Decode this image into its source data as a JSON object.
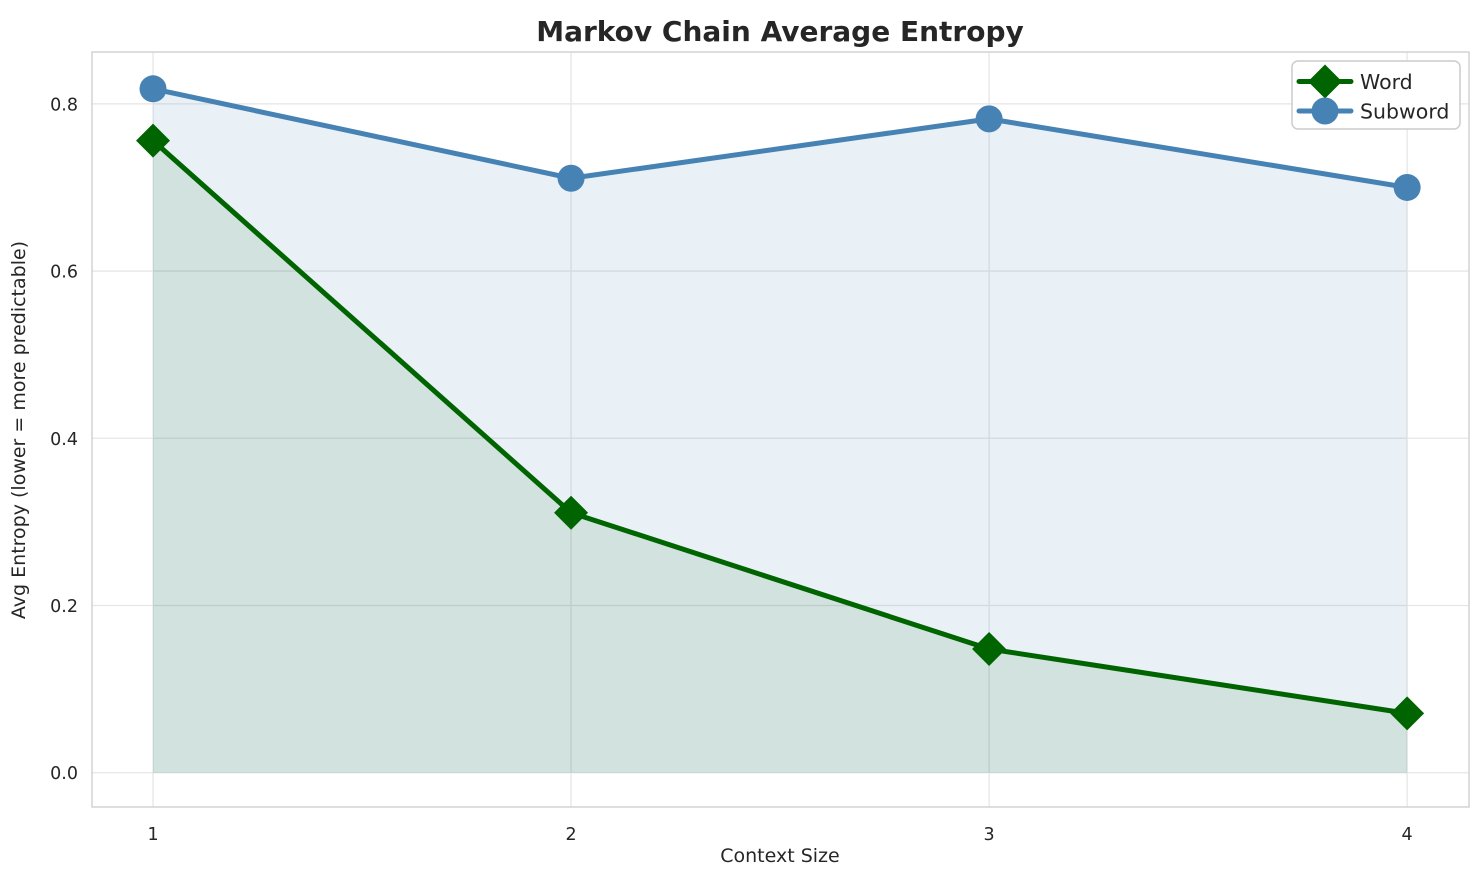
{
  "chart_data": {
    "type": "line",
    "title": "Markov Chain Average Entropy",
    "xlabel": "Context Size",
    "ylabel": "Avg Entropy (lower = more predictable)",
    "x": [
      1,
      2,
      3,
      4
    ],
    "series": [
      {
        "name": "Word",
        "values": [
          0.756,
          0.311,
          0.148,
          0.071
        ],
        "color": "#006400",
        "marker": "diamond",
        "fill_to_zero": true,
        "fill_opacity": 0.1
      },
      {
        "name": "Subword",
        "values": [
          0.818,
          0.711,
          0.782,
          0.7
        ],
        "color": "#4682b4",
        "marker": "circle",
        "fill_to_zero": true,
        "fill_opacity": 0.12
      }
    ],
    "xticks": [
      1,
      2,
      3,
      4
    ],
    "yticks": [
      0.0,
      0.2,
      0.4,
      0.6,
      0.8
    ],
    "xlim": [
      0.854,
      4.148
    ],
    "ylim": [
      -0.041,
      0.862
    ],
    "grid": true,
    "legend_position": "upper right",
    "colors": {
      "grid": "#e6e6e6",
      "spine": "#d0d0d0",
      "text": "#262626",
      "legend_border": "#cccccc",
      "legend_bg": "#ffffff"
    }
  }
}
